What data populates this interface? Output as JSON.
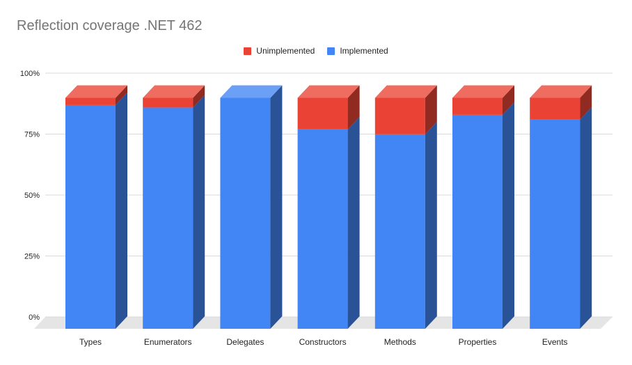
{
  "chart_data": {
    "type": "bar",
    "stacked": true,
    "three_d": true,
    "title": "Reflection coverage .NET 462",
    "categories": [
      "Types",
      "Enumerators",
      "Delegates",
      "Constructors",
      "Methods",
      "Properties",
      "Events"
    ],
    "series": [
      {
        "name": "Implemented",
        "color": "#4285f4",
        "values": [
          92,
          91,
          95,
          82,
          80,
          88,
          86
        ]
      },
      {
        "name": "Unimplemented",
        "color": "#ea4335",
        "values": [
          3,
          4,
          0,
          13,
          15,
          7,
          9
        ]
      }
    ],
    "legend_order": [
      "Unimplemented",
      "Implemented"
    ],
    "yticks": [
      "0%",
      "25%",
      "50%",
      "75%",
      "100%"
    ],
    "ylim": [
      0,
      100
    ],
    "grid": true,
    "legend_position": "top"
  }
}
